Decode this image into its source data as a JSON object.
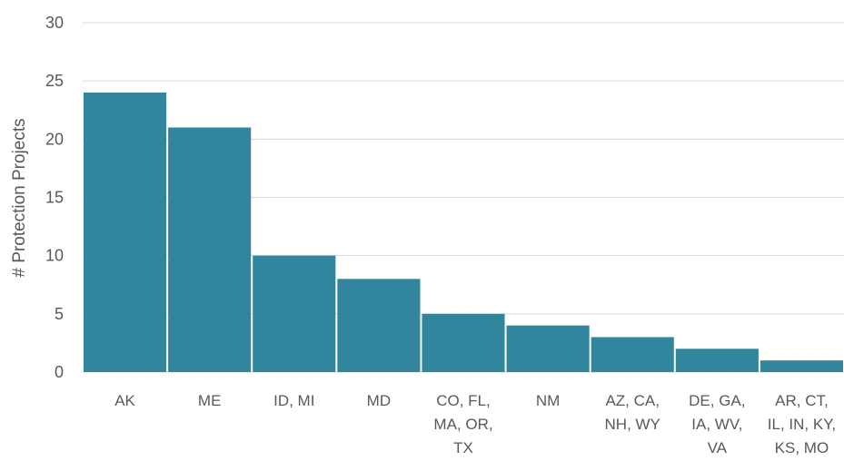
{
  "chart_data": {
    "type": "bar",
    "title": "",
    "xlabel": "",
    "ylabel": "# Protection Projects",
    "ylim": [
      0,
      30
    ],
    "yticks": [
      0,
      5,
      10,
      15,
      20,
      25,
      30
    ],
    "grid": true,
    "legend": "none",
    "bar_color": "#31859c",
    "gridline_color": "#d9d9d9",
    "text_color": "#595959",
    "categories": [
      "AK",
      "ME",
      "ID, MI",
      "MD",
      "CO, FL, MA, OR, TX",
      "NM",
      "AZ, CA, NH, WY",
      "DE, GA, IA, WV, VA",
      "AR, CT, IL, IN, KY, KS, MO"
    ],
    "category_lines": [
      [
        "AK"
      ],
      [
        "ME"
      ],
      [
        "ID, MI"
      ],
      [
        "MD"
      ],
      [
        "CO, FL,",
        "MA, OR,",
        "TX"
      ],
      [
        "NM"
      ],
      [
        "AZ, CA,",
        "NH, WY"
      ],
      [
        "DE, GA,",
        "IA, WV,",
        "VA"
      ],
      [
        "AR, CT,",
        "IL, IN, KY,",
        "KS, MO"
      ]
    ],
    "values": [
      24,
      21,
      10,
      8,
      5,
      4,
      3,
      2,
      1
    ]
  }
}
